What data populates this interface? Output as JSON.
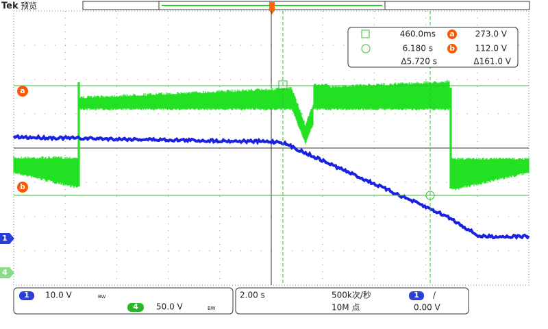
{
  "header": {
    "brand": "Tek",
    "mode": "预览"
  },
  "readout": {
    "t1": "460.0ms",
    "t2": "6.180 s",
    "dt": "Δ5.720 s",
    "a_id": "a",
    "a_value": "273.0 V",
    "b_id": "b",
    "b_value": "112.0 V",
    "dv": "Δ161.0 V"
  },
  "markers": {
    "a": "a",
    "b": "b",
    "ch1": "1",
    "ch4": "4"
  },
  "status": {
    "ch1": {
      "id": "1",
      "scale": "10.0 V",
      "bw": "BW"
    },
    "ch4": {
      "id": "4",
      "scale": "50.0 V",
      "bw": "BW"
    },
    "timebase": "2.00 s",
    "sample_rate": "500k次/秒",
    "record_length": "10M 点",
    "trigger": {
      "source": "1",
      "slope": "/",
      "level": "0.00 V"
    }
  }
}
